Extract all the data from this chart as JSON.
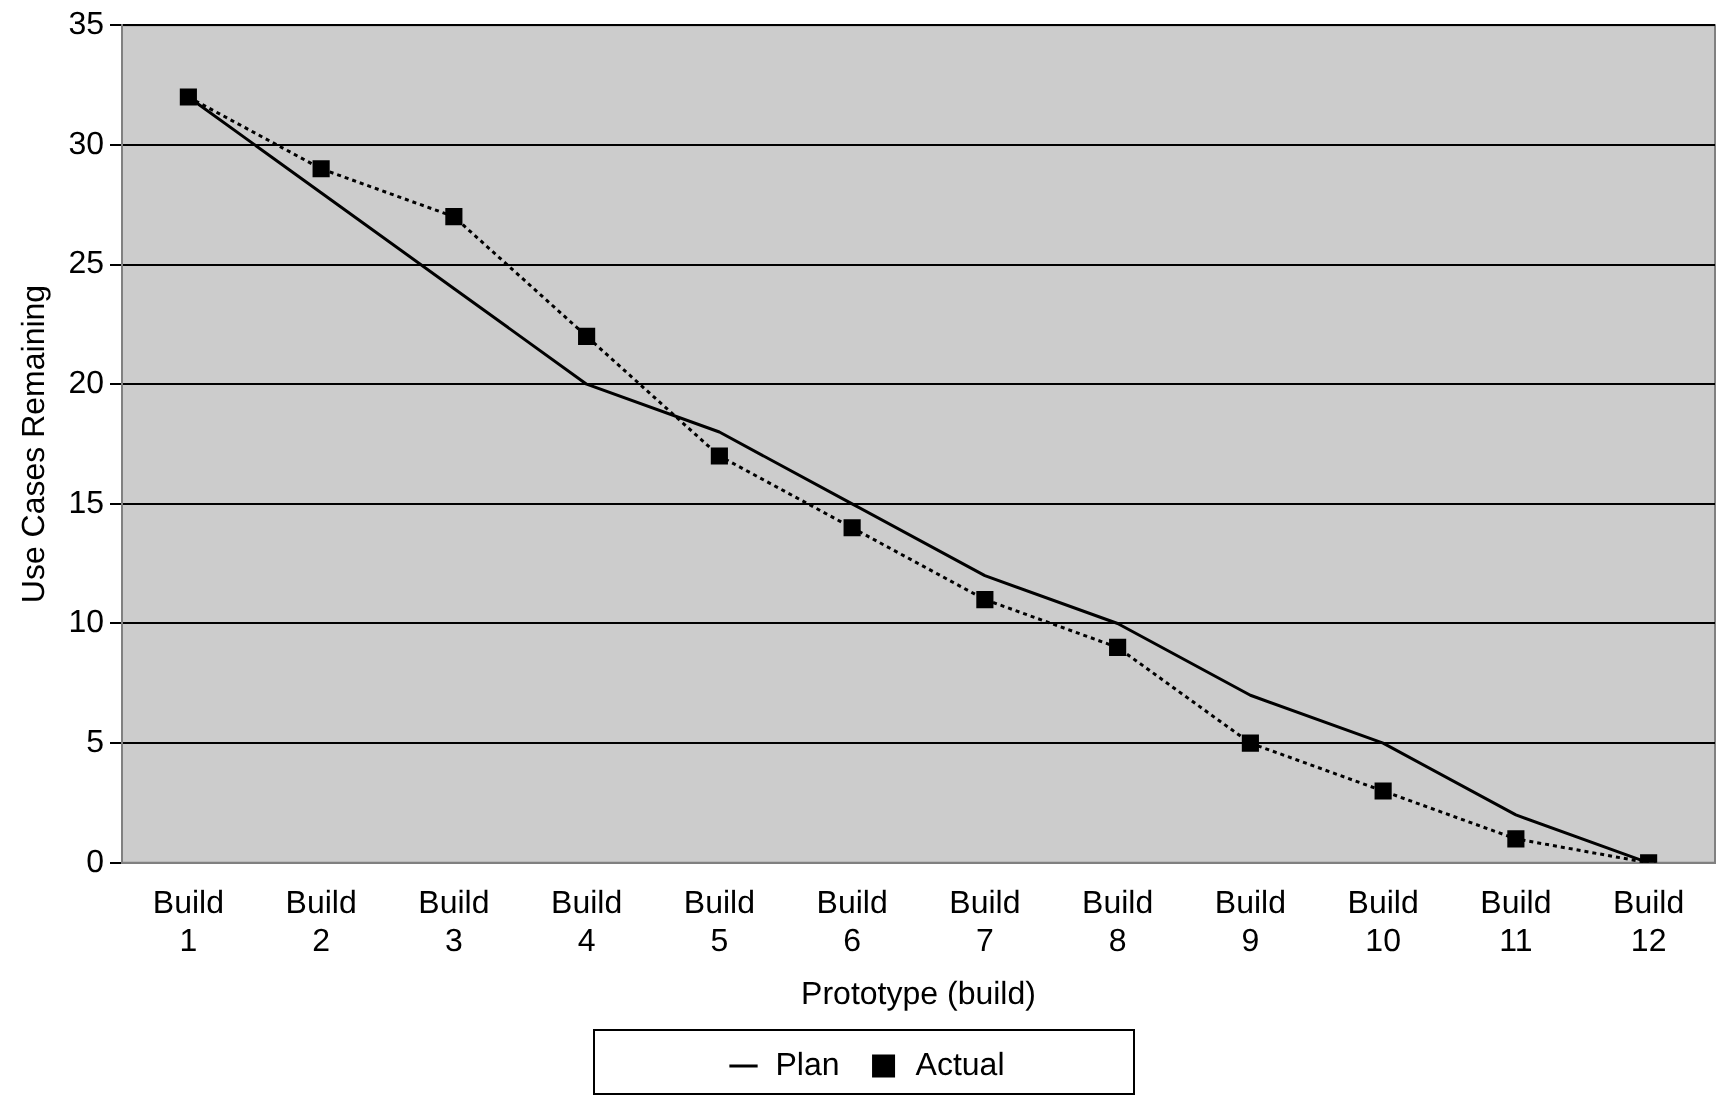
{
  "chart_data": {
    "type": "line",
    "xlabel": "Prototype (build)",
    "ylabel": "Use Cases Remaining",
    "categories": [
      "Build 1",
      "Build 2",
      "Build 3",
      "Build 4",
      "Build 5",
      "Build 6",
      "Build 7",
      "Build 8",
      "Build 9",
      "Build 10",
      "Build 11",
      "Build 12"
    ],
    "series": [
      {
        "name": "Plan",
        "color": "#000000",
        "marker": "none",
        "line_style": "solid",
        "values": [
          32,
          28,
          24,
          20,
          18,
          15,
          12,
          10,
          7,
          5,
          2,
          0
        ]
      },
      {
        "name": "Actual",
        "color": "#000000",
        "marker": "square",
        "line_style": "dotted",
        "values": [
          32,
          29,
          27,
          22,
          17,
          14,
          11,
          9,
          5,
          3,
          1,
          0
        ]
      }
    ],
    "ylim": [
      0,
      35
    ],
    "yticks": [
      0,
      5,
      10,
      15,
      20,
      25,
      30,
      35
    ],
    "grid": "y",
    "legend": "bottom"
  }
}
